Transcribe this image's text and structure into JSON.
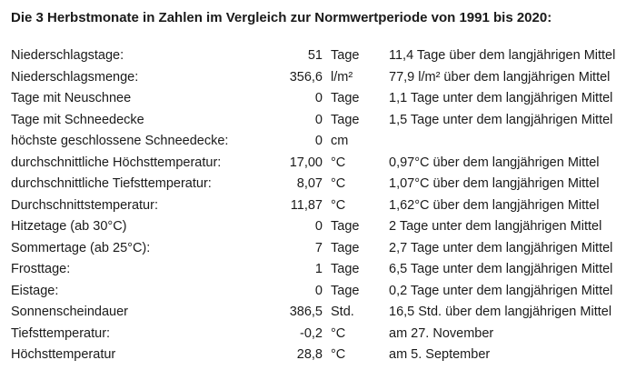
{
  "title": "Die 3 Herbstmonate in Zahlen im Vergleich zur Normwertperiode von 1991 bis 2020:",
  "rows": [
    {
      "label": "Niederschlagstage:",
      "value": "51",
      "unit": "Tage",
      "comment": "11,4 Tage über dem langjährigen Mittel"
    },
    {
      "label": "Niederschlagsmenge:",
      "value": "356,6",
      "unit": "l/m²",
      "comment": "77,9 l/m² über dem langjährigen Mittel"
    },
    {
      "label": "Tage mit Neuschnee",
      "value": "0",
      "unit": "Tage",
      "comment": "1,1 Tage unter dem langjährigen Mittel"
    },
    {
      "label": "Tage mit Schneedecke",
      "value": "0",
      "unit": "Tage",
      "comment": "1,5 Tage unter dem langjährigen Mittel"
    },
    {
      "label": "höchste geschlossene Schneedecke:",
      "value": "0",
      "unit": "cm",
      "comment": ""
    },
    {
      "label": "durchschnittliche Höchsttemperatur:",
      "value": "17,00",
      "unit": "°C",
      "comment": "0,97°C über dem langjährigen Mittel"
    },
    {
      "label": "durchschnittliche Tiefsttemperatur:",
      "value": "8,07",
      "unit": "°C",
      "comment": "1,07°C über dem langjährigen Mittel"
    },
    {
      "label": "Durchschnittstemperatur:",
      "value": "11,87",
      "unit": "°C",
      "comment": "1,62°C über dem langjährigen Mittel"
    },
    {
      "label": "Hitzetage (ab 30°C)",
      "value": "0",
      "unit": "Tage",
      "comment": "2 Tage unter dem langjährigen Mittel"
    },
    {
      "label": "Sommertage (ab 25°C):",
      "value": "7",
      "unit": "Tage",
      "comment": "2,7 Tage unter dem langjährigen Mittel"
    },
    {
      "label": "Frosttage:",
      "value": "1",
      "unit": "Tage",
      "comment": "6,5 Tage unter dem langjährigen Mittel"
    },
    {
      "label": "Eistage:",
      "value": "0",
      "unit": "Tage",
      "comment": "0,2 Tage unter dem langjährigen Mittel"
    },
    {
      "label": "Sonnenscheindauer",
      "value": "386,5",
      "unit": "Std.",
      "comment": "16,5 Std. über dem langjährigen Mittel"
    },
    {
      "label": "Tiefsttemperatur:",
      "value": "-0,2",
      "unit": "°C",
      "comment": "am 27. November"
    },
    {
      "label": "Höchsttemperatur",
      "value": "28,8",
      "unit": "°C",
      "comment": "am 5. September"
    }
  ]
}
